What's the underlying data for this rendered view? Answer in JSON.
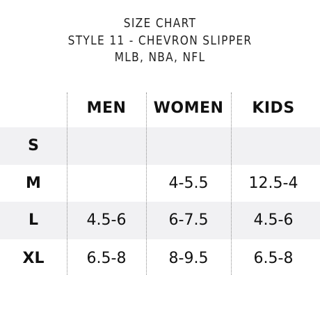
{
  "title": {
    "line1": "SIZE CHART",
    "line2": "STYLE 11 - CHEVRON SLIPPER",
    "line3": "MLB, NBA, NFL"
  },
  "table": {
    "columns": [
      "MEN",
      "WOMEN",
      "KIDS"
    ],
    "rows": [
      {
        "size": "S",
        "men": "",
        "women": "",
        "kids": ""
      },
      {
        "size": "M",
        "men": "",
        "women": "4-5.5",
        "kids": "12.5-4"
      },
      {
        "size": "L",
        "men": "4.5-6",
        "women": "6-7.5",
        "kids": "4.5-6"
      },
      {
        "size": "XL",
        "men": "6.5-8",
        "women": "8-9.5",
        "kids": "6.5-8"
      }
    ]
  },
  "colors": {
    "band": "#f1f1f3",
    "text": "#111111",
    "divider": "#8a8a8a"
  }
}
